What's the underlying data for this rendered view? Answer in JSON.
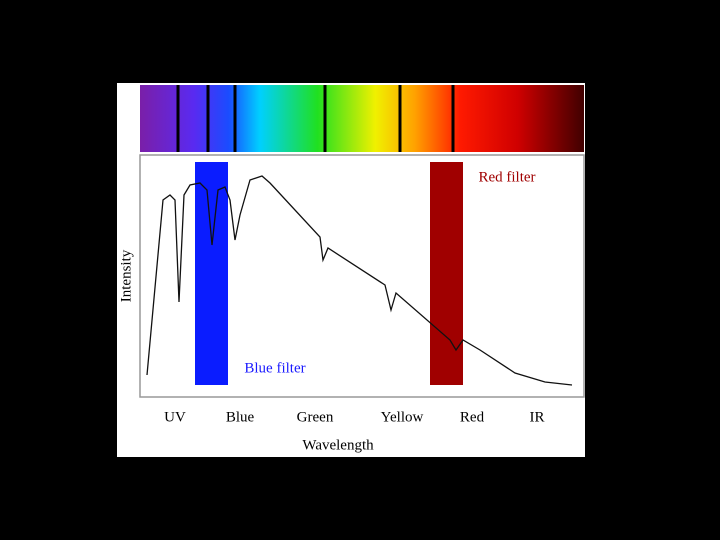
{
  "title_labels": {
    "red_filter": "Red filter",
    "blue_filter": "Blue filter"
  },
  "y_axis_label": "Intensity",
  "x_axis_label": "Wavelength",
  "x_categories": [
    "UV",
    "Blue",
    "Green",
    "Yellow",
    "Red",
    "IR"
  ]
}
